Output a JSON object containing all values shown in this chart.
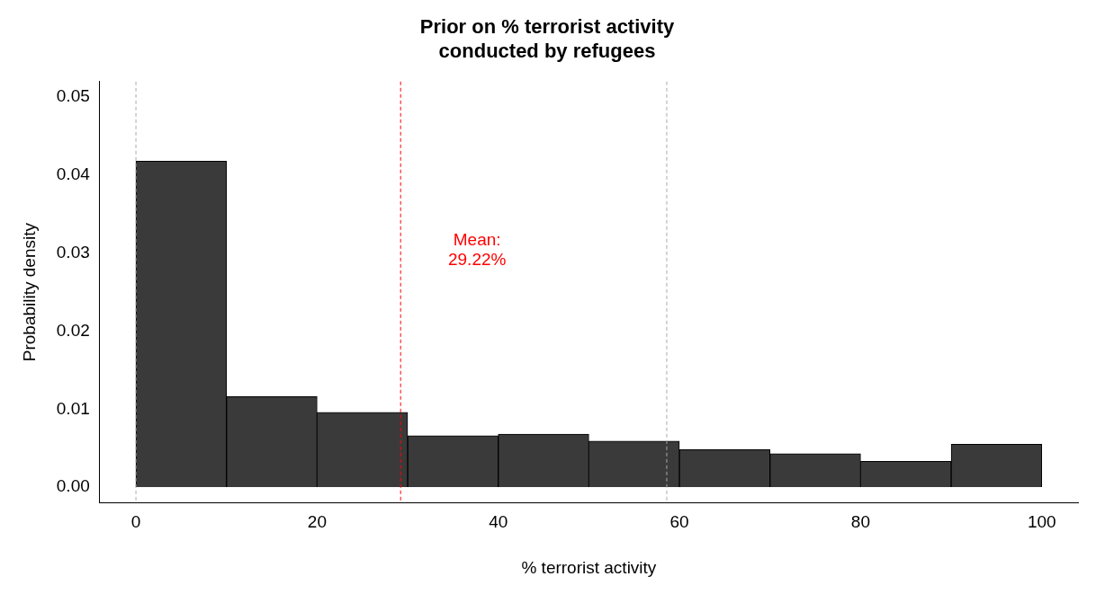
{
  "chart_data": {
    "type": "histogram",
    "title": "Prior on % terrorist activity\n conducted by refugees",
    "xlabel": "% terrorist activity",
    "ylabel": "Probability density",
    "bins": [
      0,
      10,
      20,
      30,
      40,
      50,
      60,
      70,
      80,
      90,
      100
    ],
    "values": [
      0.0418,
      0.0116,
      0.0096,
      0.0066,
      0.0068,
      0.0059,
      0.0048,
      0.0043,
      0.0033,
      0.0055
    ],
    "color": "#3a3a3a",
    "xlim": [
      -4,
      104
    ],
    "xticks": [
      0,
      20,
      40,
      60,
      80,
      100
    ],
    "ylim": [
      -0.002,
      0.052
    ],
    "yticks": [
      {
        "value": 0,
        "label": "0.00"
      },
      0.01,
      0.02,
      0.03,
      0.04,
      0.05
    ],
    "ref_lines": [
      {
        "axis": "x",
        "value": 0,
        "color": "#aaaaaa",
        "line_style": "dashed"
      },
      {
        "axis": "x",
        "value": 29.22,
        "label": "Mean:\n29.22%",
        "color": "#ff0000",
        "line_style": "dashed"
      },
      {
        "axis": "x",
        "value": 58.6,
        "color": "#aaaaaa",
        "line_style": "dashed"
      }
    ],
    "grid": false,
    "legend": false
  }
}
